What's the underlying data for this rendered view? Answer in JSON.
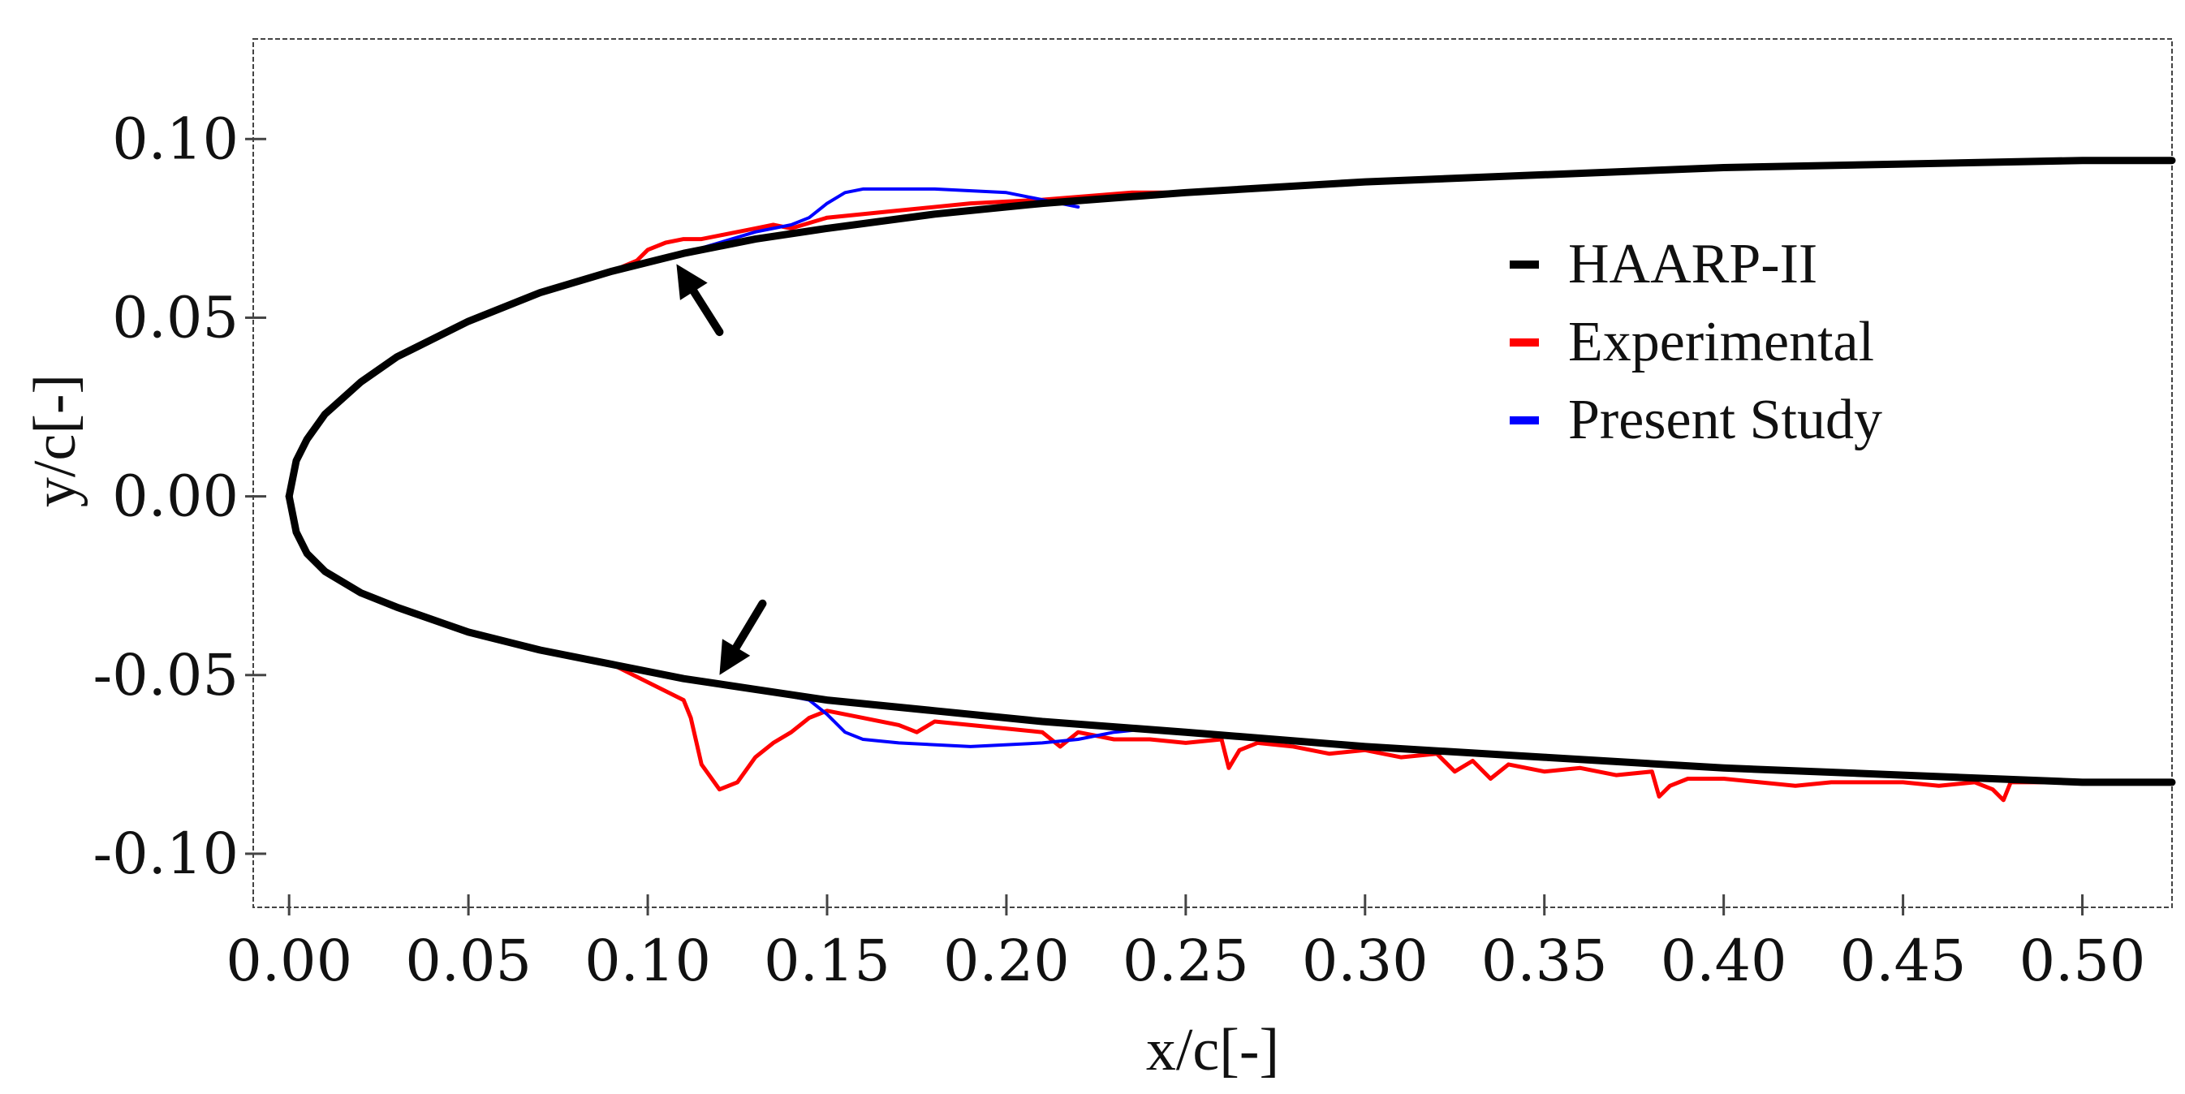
{
  "chart_data": {
    "type": "line",
    "title": "",
    "xlabel": "x/c[-]",
    "ylabel": "y/c[-]",
    "xlim": [
      -0.01,
      0.525
    ],
    "ylim": [
      -0.115,
      0.128
    ],
    "xticks": [
      0.0,
      0.05,
      0.1,
      0.15,
      0.2,
      0.25,
      0.3,
      0.35,
      0.4,
      0.45,
      0.5
    ],
    "xtick_labels": [
      "0.00",
      "0.05",
      "0.10",
      "0.15",
      "0.20",
      "0.25",
      "0.30",
      "0.35",
      "0.40",
      "0.45",
      "0.50"
    ],
    "yticks": [
      0.1,
      0.05,
      0.0,
      -0.05,
      -0.1
    ],
    "ytick_labels": [
      "0.10",
      "0.05",
      "0.00",
      "-0.05",
      "-0.10"
    ],
    "legend_position": "right",
    "series": [
      {
        "name": "HAARP-II",
        "color": "#000000",
        "paths": [
          {
            "x": [
              0.0,
              0.002,
              0.005,
              0.01,
              0.02,
              0.03,
              0.05,
              0.07,
              0.09,
              0.11,
              0.13,
              0.15,
              0.18,
              0.21,
              0.25,
              0.3,
              0.35,
              0.4,
              0.45,
              0.5,
              0.525
            ],
            "y": [
              0.0,
              0.01,
              0.016,
              0.023,
              0.032,
              0.039,
              0.049,
              0.057,
              0.063,
              0.068,
              0.072,
              0.075,
              0.079,
              0.082,
              0.085,
              0.088,
              0.09,
              0.092,
              0.093,
              0.094,
              0.094
            ]
          },
          {
            "x": [
              0.0,
              0.002,
              0.005,
              0.01,
              0.02,
              0.03,
              0.05,
              0.07,
              0.09,
              0.11,
              0.13,
              0.15,
              0.18,
              0.21,
              0.25,
              0.3,
              0.35,
              0.4,
              0.45,
              0.5,
              0.525
            ],
            "y": [
              0.0,
              -0.01,
              -0.016,
              -0.021,
              -0.027,
              -0.031,
              -0.038,
              -0.043,
              -0.047,
              -0.051,
              -0.054,
              -0.057,
              -0.06,
              -0.063,
              -0.066,
              -0.07,
              -0.073,
              -0.076,
              -0.078,
              -0.08,
              -0.08
            ]
          }
        ]
      },
      {
        "name": "Experimental",
        "color": "#ff0000",
        "paths": [
          {
            "x": [
              0.0,
              0.002,
              0.005,
              0.01,
              0.02,
              0.03,
              0.05,
              0.07,
              0.09,
              0.097,
              0.1,
              0.105,
              0.11,
              0.115,
              0.12,
              0.13,
              0.135,
              0.14,
              0.15,
              0.17,
              0.19,
              0.21,
              0.235,
              0.25,
              0.3,
              0.35,
              0.4,
              0.45,
              0.5,
              0.525
            ],
            "y": [
              0.0,
              0.01,
              0.016,
              0.023,
              0.032,
              0.039,
              0.049,
              0.057,
              0.063,
              0.066,
              0.069,
              0.071,
              0.072,
              0.072,
              0.073,
              0.075,
              0.076,
              0.075,
              0.078,
              0.08,
              0.082,
              0.083,
              0.085,
              0.085,
              0.088,
              0.09,
              0.092,
              0.093,
              0.094,
              0.094
            ]
          },
          {
            "x": [
              0.0,
              0.002,
              0.005,
              0.01,
              0.02,
              0.03,
              0.05,
              0.07,
              0.09,
              0.11,
              0.112,
              0.115,
              0.12,
              0.125,
              0.13,
              0.135,
              0.14,
              0.145,
              0.15,
              0.16,
              0.17,
              0.175,
              0.18,
              0.19,
              0.2,
              0.21,
              0.215,
              0.22,
              0.23,
              0.24,
              0.25,
              0.26,
              0.262,
              0.265,
              0.27,
              0.28,
              0.29,
              0.3,
              0.31,
              0.32,
              0.325,
              0.33,
              0.335,
              0.34,
              0.35,
              0.36,
              0.37,
              0.38,
              0.382,
              0.385,
              0.39,
              0.4,
              0.41,
              0.42,
              0.43,
              0.44,
              0.45,
              0.46,
              0.47,
              0.475,
              0.478,
              0.48,
              0.49,
              0.5,
              0.525
            ],
            "y": [
              0.0,
              -0.01,
              -0.016,
              -0.021,
              -0.027,
              -0.031,
              -0.038,
              -0.043,
              -0.047,
              -0.057,
              -0.062,
              -0.075,
              -0.082,
              -0.08,
              -0.073,
              -0.069,
              -0.066,
              -0.062,
              -0.06,
              -0.062,
              -0.064,
              -0.066,
              -0.063,
              -0.064,
              -0.065,
              -0.066,
              -0.07,
              -0.066,
              -0.068,
              -0.068,
              -0.069,
              -0.068,
              -0.076,
              -0.071,
              -0.069,
              -0.07,
              -0.072,
              -0.071,
              -0.073,
              -0.072,
              -0.077,
              -0.074,
              -0.079,
              -0.075,
              -0.077,
              -0.076,
              -0.078,
              -0.077,
              -0.084,
              -0.081,
              -0.079,
              -0.079,
              -0.08,
              -0.081,
              -0.08,
              -0.08,
              -0.08,
              -0.081,
              -0.08,
              -0.082,
              -0.085,
              -0.08,
              -0.08,
              -0.08,
              -0.08
            ]
          }
        ]
      },
      {
        "name": "Present Study",
        "color": "#0000ff",
        "paths": [
          {
            "x": [
              0.11,
              0.12,
              0.13,
              0.14,
              0.145,
              0.15,
              0.155,
              0.16,
              0.18,
              0.2,
              0.21,
              0.22
            ],
            "y": [
              0.068,
              0.071,
              0.074,
              0.076,
              0.078,
              0.082,
              0.085,
              0.086,
              0.086,
              0.085,
              0.083,
              0.081
            ]
          },
          {
            "x": [
              0.12,
              0.13,
              0.14,
              0.145,
              0.15,
              0.155,
              0.16,
              0.17,
              0.19,
              0.21,
              0.22,
              0.23,
              0.24
            ],
            "y": [
              -0.052,
              -0.054,
              -0.056,
              -0.057,
              -0.061,
              -0.066,
              -0.068,
              -0.069,
              -0.07,
              -0.069,
              -0.068,
              -0.066,
              -0.065
            ]
          }
        ]
      }
    ],
    "annotations": [
      {
        "type": "arrow",
        "color": "#000000",
        "from": [
          0.12,
          0.046
        ],
        "to": [
          0.108,
          0.065
        ]
      },
      {
        "type": "arrow",
        "color": "#000000",
        "from": [
          0.132,
          -0.03
        ],
        "to": [
          0.12,
          -0.05
        ]
      }
    ]
  }
}
